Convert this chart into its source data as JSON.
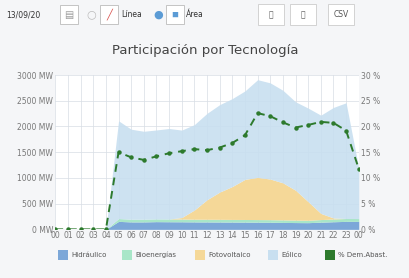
{
  "title": "Participación por Tecnología",
  "x_labels": [
    "00",
    "01",
    "02",
    "03",
    "04",
    "05",
    "06",
    "07",
    "08",
    "09",
    "10",
    "11",
    "12",
    "13",
    "14",
    "15",
    "16",
    "17",
    "18",
    "19",
    "20",
    "21",
    "22",
    "23",
    "00"
  ],
  "x_ticks": [
    0,
    1,
    2,
    3,
    4,
    5,
    6,
    7,
    8,
    9,
    10,
    11,
    12,
    13,
    14,
    15,
    16,
    17,
    18,
    19,
    20,
    21,
    22,
    23,
    24
  ],
  "ylim_left": [
    0,
    3000
  ],
  "ylim_right": [
    0,
    30
  ],
  "yticks_left": [
    0,
    500,
    1000,
    1500,
    2000,
    2500,
    3000
  ],
  "yticks_right": [
    0,
    5,
    10,
    15,
    20,
    25,
    30
  ],
  "background_color": "#f5f6f8",
  "plot_bg_color": "#ffffff",
  "grid_color": "#d8dde4",
  "hidraulico_color": "#7ca7d8",
  "bioenergias_color": "#a8e6c8",
  "fotovoltaico_color": "#f5d898",
  "eolico_color": "#c8dff0",
  "pct_color": "#2d7a2d",
  "header_bg": "#f0f2f5",
  "hidraulico": [
    0,
    0,
    0,
    0,
    0,
    155,
    145,
    145,
    150,
    148,
    147,
    145,
    144,
    143,
    142,
    141,
    140,
    138,
    135,
    132,
    130,
    140,
    148,
    155,
    155
  ],
  "bioenergias": [
    0,
    0,
    0,
    0,
    0,
    55,
    52,
    52,
    53,
    53,
    53,
    52,
    52,
    52,
    51,
    51,
    50,
    50,
    49,
    48,
    47,
    50,
    53,
    56,
    55
  ],
  "fotovoltaico": [
    0,
    0,
    0,
    0,
    0,
    0,
    0,
    0,
    0,
    0,
    30,
    180,
    380,
    530,
    640,
    780,
    820,
    790,
    720,
    580,
    360,
    120,
    20,
    0,
    0
  ],
  "eolico": [
    0,
    0,
    0,
    0,
    0,
    1900,
    1750,
    1710,
    1730,
    1760,
    1700,
    1660,
    1680,
    1700,
    1710,
    1720,
    1900,
    1870,
    1800,
    1720,
    1820,
    1910,
    2150,
    2250,
    980
  ],
  "pct_dem": [
    0,
    0,
    0,
    0,
    0,
    15.0,
    14.0,
    13.5,
    14.2,
    14.8,
    15.2,
    15.6,
    15.4,
    15.9,
    16.8,
    18.3,
    22.6,
    22.0,
    20.8,
    19.8,
    20.3,
    20.9,
    20.7,
    19.2,
    11.8
  ],
  "legend_labels": [
    "Hidráulico",
    "Bioenergías",
    "Fotovoltaico",
    "Eólico",
    "% Dem.Abast."
  ],
  "legend_colors": [
    "#7ca7d8",
    "#a8e6c8",
    "#f5d898",
    "#c8dff0",
    "#2d7a2d"
  ]
}
